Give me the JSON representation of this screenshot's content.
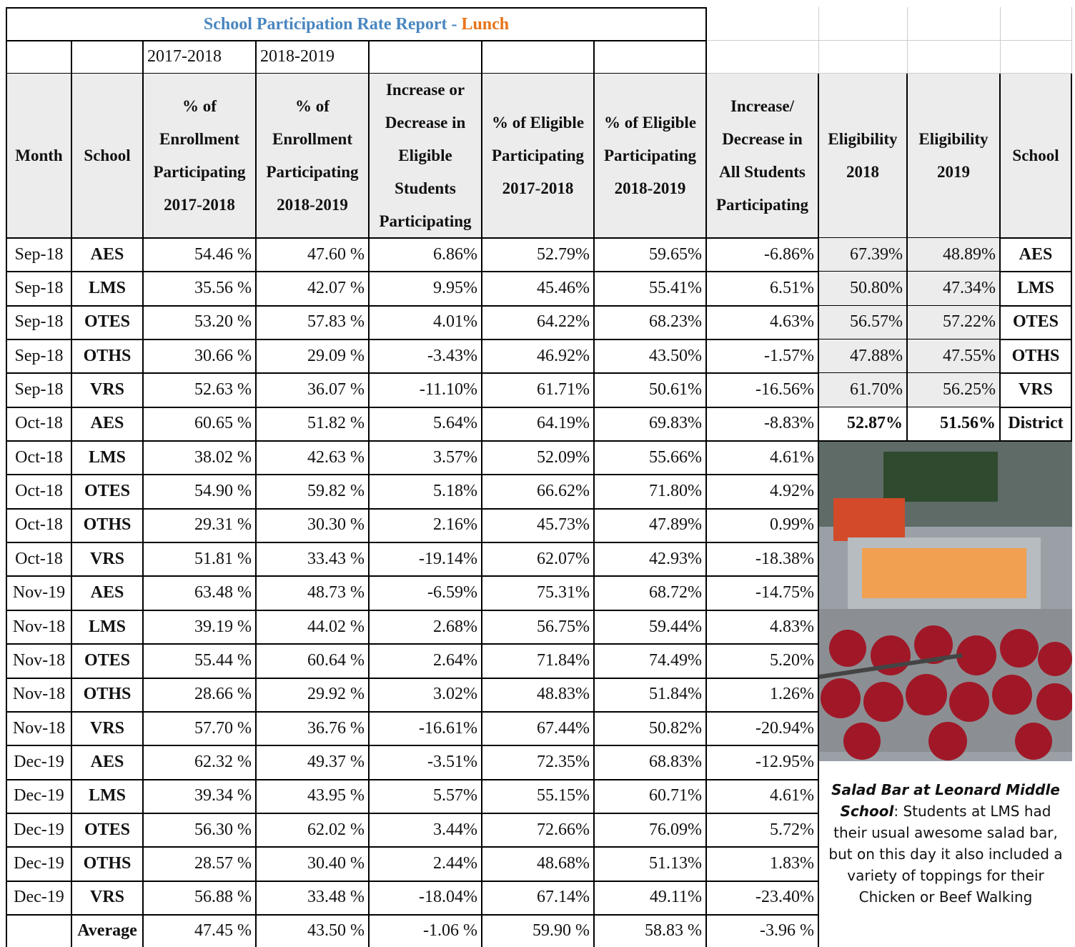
{
  "title": {
    "main": "School Participation Rate Report - ",
    "highlight": "Lunch"
  },
  "year_labels": [
    "2017-2018",
    "2018-2019"
  ],
  "table": {
    "headers": [
      "Month",
      "School",
      "% of Enrollment Participating 2017-2018",
      "% of Enrollment Participating 2018-2019",
      "Increase or Decrease in Eligible Students Participating",
      "% of Eligible Participating 2017-2018",
      "% of Eligible Participating 2018-2019",
      "Increase/ Decrease in All Students Participating",
      "Eligibility 2018",
      "Eligibility 2019",
      "School"
    ],
    "rows": [
      [
        "Sep-18",
        "AES",
        "54.46 %",
        "47.60 %",
        "6.86%",
        "52.79%",
        "59.65%",
        "-6.86%"
      ],
      [
        "Sep-18",
        "LMS",
        "35.56 %",
        "42.07 %",
        "9.95%",
        "45.46%",
        "55.41%",
        "6.51%"
      ],
      [
        "Sep-18",
        "OTES",
        "53.20 %",
        "57.83 %",
        "4.01%",
        "64.22%",
        "68.23%",
        "4.63%"
      ],
      [
        "Sep-18",
        "OTHS",
        "30.66 %",
        "29.09 %",
        "-3.43%",
        "46.92%",
        "43.50%",
        "-1.57%"
      ],
      [
        "Sep-18",
        "VRS",
        "52.63 %",
        "36.07 %",
        "-11.10%",
        "61.71%",
        "50.61%",
        "-16.56%"
      ],
      [
        "Oct-18",
        "AES",
        "60.65 %",
        "51.82 %",
        "5.64%",
        "64.19%",
        "69.83%",
        "-8.83%"
      ],
      [
        "Oct-18",
        "LMS",
        "38.02 %",
        "42.63 %",
        "3.57%",
        "52.09%",
        "55.66%",
        "4.61%"
      ],
      [
        "Oct-18",
        "OTES",
        "54.90 %",
        "59.82 %",
        "5.18%",
        "66.62%",
        "71.80%",
        "4.92%"
      ],
      [
        "Oct-18",
        "OTHS",
        "29.31 %",
        "30.30 %",
        "2.16%",
        "45.73%",
        "47.89%",
        "0.99%"
      ],
      [
        "Oct-18",
        "VRS",
        "51.81 %",
        "33.43 %",
        "-19.14%",
        "62.07%",
        "42.93%",
        "-18.38%"
      ],
      [
        "Nov-19",
        "AES",
        "63.48 %",
        "48.73 %",
        "-6.59%",
        "75.31%",
        "68.72%",
        "-14.75%"
      ],
      [
        "Nov-18",
        "LMS",
        "39.19 %",
        "44.02 %",
        "2.68%",
        "56.75%",
        "59.44%",
        "4.83%"
      ],
      [
        "Nov-18",
        "OTES",
        "55.44 %",
        "60.64 %",
        "2.64%",
        "71.84%",
        "74.49%",
        "5.20%"
      ],
      [
        "Nov-18",
        "OTHS",
        "28.66 %",
        "29.92 %",
        "3.02%",
        "48.83%",
        "51.84%",
        "1.26%"
      ],
      [
        "Nov-18",
        "VRS",
        "57.70 %",
        "36.76 %",
        "-16.61%",
        "67.44%",
        "50.82%",
        "-20.94%"
      ],
      [
        "Dec-19",
        "AES",
        "62.32 %",
        "49.37 %",
        "-3.51%",
        "72.35%",
        "68.83%",
        "-12.95%"
      ],
      [
        "Dec-19",
        "LMS",
        "39.34 %",
        "43.95 %",
        "5.57%",
        "55.15%",
        "60.71%",
        "4.61%"
      ],
      [
        "Dec-19",
        "OTES",
        "56.30 %",
        "62.02 %",
        "3.44%",
        "72.66%",
        "76.09%",
        "5.72%"
      ],
      [
        "Dec-19",
        "OTHS",
        "28.57 %",
        "30.40 %",
        "2.44%",
        "48.68%",
        "51.13%",
        "1.83%"
      ],
      [
        "Dec-19",
        "VRS",
        "56.88 %",
        "33.48 %",
        "-18.04%",
        "67.14%",
        "49.11%",
        "-23.40%"
      ]
    ],
    "average": {
      "label": "Average",
      "values": [
        "47.45 %",
        "43.50 %",
        "-1.06 %",
        "59.90 %",
        "58.83 %",
        "-3.96 %"
      ]
    }
  },
  "eligibility": {
    "rows": [
      [
        "67.39%",
        "48.89%",
        "AES"
      ],
      [
        "50.80%",
        "47.34%",
        "LMS"
      ],
      [
        "56.57%",
        "57.22%",
        "OTES"
      ],
      [
        "47.88%",
        "47.55%",
        "OTHS"
      ],
      [
        "61.70%",
        "56.25%",
        "VRS"
      ],
      [
        "52.87%",
        "51.56%",
        "District"
      ]
    ]
  },
  "caption": {
    "title": "Salad Bar at Leonard Middle School",
    "text": ": Students at LMS had their usual awesome salad bar, but on this day it also included a variety of toppings for their Chicken or Beef Walking"
  }
}
